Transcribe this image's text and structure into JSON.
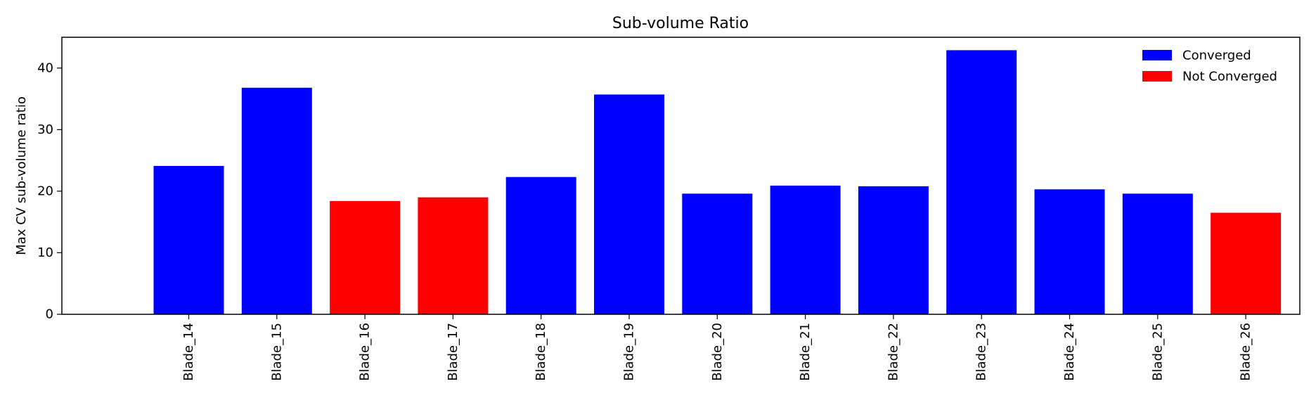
{
  "chart_data": {
    "type": "bar",
    "title": "Sub-volume Ratio",
    "xlabel": "",
    "ylabel": "Max CV sub-volume ratio",
    "categories": [
      "Blade_14",
      "Blade_15",
      "Blade_16",
      "Blade_17",
      "Blade_18",
      "Blade_19",
      "Blade_20",
      "Blade_21",
      "Blade_22",
      "Blade_23",
      "Blade_24",
      "Blade_25",
      "Blade_26"
    ],
    "values": [
      24.1,
      36.8,
      18.4,
      19.0,
      22.3,
      35.7,
      19.6,
      20.9,
      20.8,
      42.9,
      20.3,
      19.6,
      16.5
    ],
    "status": [
      "Converged",
      "Converged",
      "Not Converged",
      "Not Converged",
      "Converged",
      "Converged",
      "Converged",
      "Converged",
      "Converged",
      "Converged",
      "Converged",
      "Converged",
      "Not Converged"
    ],
    "ylim": [
      0,
      45
    ],
    "yticks": [
      0,
      10,
      20,
      30,
      40
    ],
    "grid": false,
    "legend": {
      "placement": "top-right",
      "entries": [
        {
          "label": "Converged",
          "color": "#0000ff"
        },
        {
          "label": "Not Converged",
          "color": "#ff0000"
        }
      ]
    }
  }
}
